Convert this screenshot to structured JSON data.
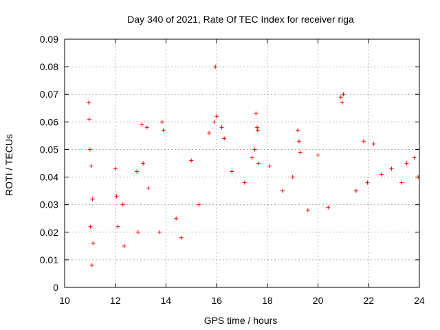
{
  "chart_data": {
    "type": "scatter",
    "title": "Day 340 of 2021, Rate Of TEC Index for receiver riga",
    "xlabel": "GPS time / hours",
    "ylabel": "ROTI / TECUs",
    "xlim": [
      10,
      24
    ],
    "ylim": [
      0,
      0.09
    ],
    "xticks": [
      10,
      12,
      14,
      16,
      18,
      20,
      22,
      24
    ],
    "xtick_labels": [
      "10",
      "12",
      "14",
      "16",
      "18",
      "20",
      "22",
      "24"
    ],
    "yticks": [
      0,
      0.01,
      0.02,
      0.03,
      0.04,
      0.05,
      0.06,
      0.07,
      0.08,
      0.09
    ],
    "ytick_labels": [
      "0",
      "0.01",
      "0.02",
      "0.03",
      "0.04",
      "0.05",
      "0.06",
      "0.07",
      "0.08",
      "0.09"
    ],
    "grid": true,
    "marker": "+",
    "color": "#ff0000",
    "series": [
      {
        "name": "ROTI",
        "x": [
          10.95,
          10.97,
          11.0,
          11.05,
          11.1,
          11.12,
          11.02,
          11.08,
          12.0,
          12.05,
          12.1,
          12.3,
          12.35,
          12.85,
          12.9,
          13.05,
          13.1,
          13.25,
          13.3,
          13.75,
          13.85,
          13.9,
          14.4,
          14.6,
          15.0,
          15.3,
          15.7,
          15.9,
          15.95,
          16.0,
          16.2,
          16.3,
          16.6,
          17.1,
          17.4,
          17.5,
          17.55,
          17.6,
          17.62,
          17.65,
          18.1,
          18.6,
          19.0,
          19.2,
          19.25,
          19.3,
          19.6,
          20.0,
          20.4,
          20.9,
          20.95,
          21.0,
          21.5,
          21.8,
          21.95,
          22.2,
          22.5,
          22.9,
          23.3,
          23.5,
          23.8,
          23.95
        ],
        "y": [
          0.067,
          0.061,
          0.05,
          0.044,
          0.032,
          0.016,
          0.022,
          0.008,
          0.043,
          0.033,
          0.022,
          0.03,
          0.015,
          0.042,
          0.02,
          0.059,
          0.045,
          0.058,
          0.036,
          0.02,
          0.06,
          0.057,
          0.025,
          0.018,
          0.046,
          0.03,
          0.056,
          0.06,
          0.08,
          0.062,
          0.058,
          0.054,
          0.042,
          0.038,
          0.047,
          0.05,
          0.063,
          0.058,
          0.057,
          0.045,
          0.044,
          0.035,
          0.04,
          0.057,
          0.053,
          0.049,
          0.028,
          0.048,
          0.029,
          0.069,
          0.067,
          0.07,
          0.035,
          0.053,
          0.038,
          0.052,
          0.041,
          0.043,
          0.038,
          0.045,
          0.047,
          0.04
        ]
      }
    ]
  }
}
